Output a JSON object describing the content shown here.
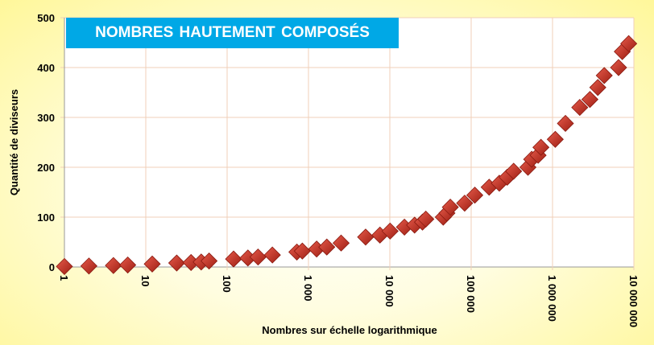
{
  "chart_data": {
    "type": "scatter",
    "title": "NOMBRES HAUTEMENT COMPOSÉS",
    "xlabel": "Nombres sur échelle logarithmique",
    "ylabel": "Quantité de diviseurs",
    "xscale": "log",
    "xlim": [
      1,
      10000000
    ],
    "ylim": [
      0,
      500
    ],
    "grid": true,
    "marker": "diamond",
    "marker_color": "#c0392b",
    "title_bg": "#00a8e6",
    "xticks": [
      1,
      10,
      100,
      1000,
      10000,
      100000,
      1000000,
      10000000
    ],
    "xtick_labels": [
      "1",
      "10",
      "100",
      "1 000",
      "10 000",
      "100 000",
      "1 000 000",
      "10 000 000"
    ],
    "yticks": [
      0,
      100,
      200,
      300,
      400,
      500
    ],
    "ytick_labels": [
      "0",
      "100",
      "200",
      "300",
      "400",
      "500"
    ],
    "x": [
      1,
      2,
      4,
      6,
      12,
      24,
      36,
      48,
      60,
      120,
      180,
      240,
      360,
      720,
      840,
      1260,
      1680,
      2520,
      5040,
      7560,
      10080,
      15120,
      20160,
      25200,
      27720,
      45360,
      50400,
      55440,
      83160,
      110880,
      166320,
      221760,
      277200,
      332640,
      498960,
      554400,
      665280,
      720720,
      1081080,
      1441440,
      2162160,
      2882880,
      3603600,
      4324320,
      6486480,
      7207200,
      8648640
    ],
    "y": [
      1,
      2,
      3,
      4,
      6,
      8,
      9,
      10,
      12,
      16,
      18,
      20,
      24,
      30,
      32,
      36,
      40,
      48,
      60,
      64,
      72,
      80,
      84,
      90,
      96,
      100,
      108,
      120,
      128,
      144,
      160,
      168,
      180,
      192,
      200,
      216,
      224,
      240,
      256,
      288,
      320,
      336,
      360,
      384,
      400,
      432,
      448
    ]
  }
}
